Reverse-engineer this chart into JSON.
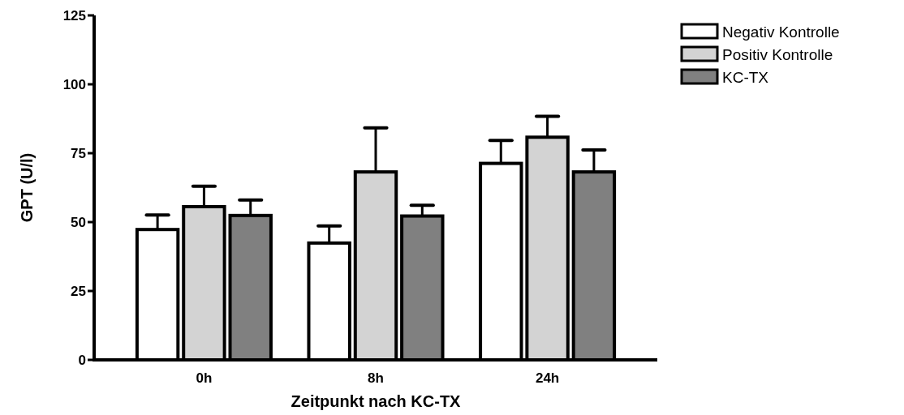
{
  "chart_data": {
    "type": "bar",
    "xlabel": "Zeitpunkt nach KC-TX",
    "ylabel": "GPT (U/l)",
    "categories": [
      "0h",
      "8h",
      "24h"
    ],
    "series": [
      {
        "name": "Negativ Kontrolle",
        "color": "#ffffff",
        "values": [
          47.3,
          42.4,
          71.3
        ],
        "errors": [
          [
            47.3,
            52.6
          ],
          [
            42.4,
            48.6
          ],
          [
            71.3,
            79.6
          ]
        ]
      },
      {
        "name": "Positiv Kontrolle",
        "color": "#d3d3d3",
        "values": [
          55.6,
          68.2,
          80.8
        ],
        "errors": [
          [
            55.6,
            63
          ],
          [
            68.2,
            84.2
          ],
          [
            80.8,
            88.4
          ]
        ]
      },
      {
        "name": "KC-TX",
        "color": "#808080",
        "values": [
          52.4,
          52.2,
          68.2
        ],
        "errors": [
          [
            52.4,
            58
          ],
          [
            52.2,
            56.1
          ],
          [
            68.2,
            76.2
          ]
        ]
      }
    ],
    "ylim": [
      0,
      125
    ],
    "yticks": [
      0,
      25,
      50,
      75,
      100,
      125
    ],
    "grid": false,
    "legend": "top right"
  }
}
